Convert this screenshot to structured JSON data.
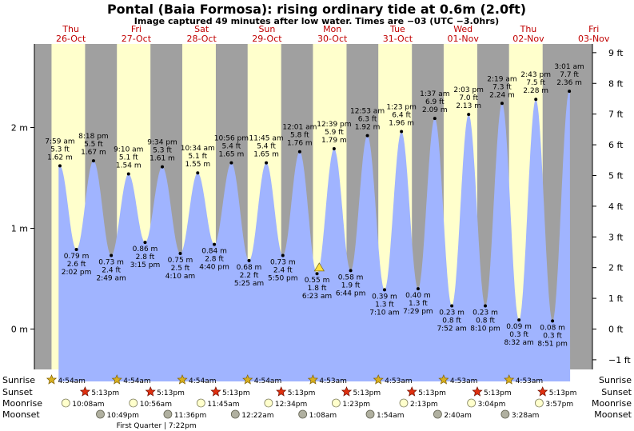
{
  "header": {
    "title": "Pontal (Baia Formosa): rising  ordinary tide at 0.6m (2.0ft)",
    "subtitle": "Image captured 49 minutes after low water. Times are −03 (UTC −3.0hrs)"
  },
  "colors": {
    "night": "#a0a0a0",
    "day": "#ffffcc",
    "water": "#a0b4ff",
    "sun": "#d8b020",
    "sunset_star": "#e03010",
    "moonrise": "#ffffcc",
    "moonset": "#b0b0a0"
  },
  "chart_data": {
    "type": "area",
    "title": "Pontal (Baia Formosa): rising  ordinary tide at 0.6m (2.0ft)",
    "x_unit": "hours since Thu 26-Oct 00:00",
    "ylim_m": [
      -0.4,
      2.65
    ],
    "y_ticks_m": [
      {
        "v": 0,
        "label": "0 m"
      },
      {
        "v": 1,
        "label": "1 m"
      },
      {
        "v": 2,
        "label": "2 m"
      }
    ],
    "y_ticks_ft": [
      {
        "v": -1,
        "label": "−1 ft"
      },
      {
        "v": 0,
        "label": "0 ft"
      },
      {
        "v": 1,
        "label": "1 ft"
      },
      {
        "v": 2,
        "label": "2 ft"
      },
      {
        "v": 3,
        "label": "3 ft"
      },
      {
        "v": 4,
        "label": "4 ft"
      },
      {
        "v": 5,
        "label": "5 ft"
      },
      {
        "v": 6,
        "label": "6 ft"
      },
      {
        "v": 7,
        "label": "7 ft"
      },
      {
        "v": 8,
        "label": "8 ft"
      },
      {
        "v": 9,
        "label": "9 ft"
      }
    ],
    "days": [
      {
        "name": "Thu",
        "date": "26-Oct"
      },
      {
        "name": "Fri",
        "date": "27-Oct"
      },
      {
        "name": "Sat",
        "date": "28-Oct"
      },
      {
        "name": "Sun",
        "date": "29-Oct"
      },
      {
        "name": "Mon",
        "date": "30-Oct"
      },
      {
        "name": "Tue",
        "date": "31-Oct"
      },
      {
        "name": "Wed",
        "date": "01-Nov"
      },
      {
        "name": "Thu",
        "date": "02-Nov"
      },
      {
        "name": "Fri",
        "date": "03-Nov"
      }
    ],
    "tides": [
      {
        "t": 7.98,
        "m": 1.62,
        "type": "high",
        "lines": [
          "7:59 am",
          "5.3 ft",
          "1.62 m"
        ]
      },
      {
        "t": 14.03,
        "m": 0.79,
        "type": "low",
        "lines": [
          "0.79 m",
          "2.6 ft",
          "2:02 pm"
        ]
      },
      {
        "t": 20.3,
        "m": 1.67,
        "type": "high",
        "lines": [
          "8:18 pm",
          "5.5 ft",
          "1.67 m"
        ]
      },
      {
        "t": 26.82,
        "m": 0.73,
        "type": "low",
        "lines": [
          "0.73 m",
          "2.4 ft",
          "2:49 am"
        ]
      },
      {
        "t": 33.17,
        "m": 1.54,
        "type": "high",
        "lines": [
          "9:10 am",
          "5.1 ft",
          "1.54 m"
        ]
      },
      {
        "t": 39.25,
        "m": 0.86,
        "type": "low",
        "lines": [
          "0.86 m",
          "2.8 ft",
          "3:15 pm"
        ]
      },
      {
        "t": 45.57,
        "m": 1.61,
        "type": "high",
        "lines": [
          "9:34 pm",
          "5.3 ft",
          "1.61 m"
        ]
      },
      {
        "t": 52.17,
        "m": 0.75,
        "type": "low",
        "lines": [
          "0.75 m",
          "2.5 ft",
          "4:10 am"
        ]
      },
      {
        "t": 58.57,
        "m": 1.55,
        "type": "high",
        "lines": [
          "10:34 am",
          "5.1 ft",
          "1.55 m"
        ]
      },
      {
        "t": 64.67,
        "m": 0.84,
        "type": "low",
        "lines": [
          "0.84 m",
          "2.8 ft",
          "4:40 pm"
        ]
      },
      {
        "t": 70.93,
        "m": 1.65,
        "type": "high",
        "lines": [
          "10:56 pm",
          "5.4 ft",
          "1.65 m"
        ]
      },
      {
        "t": 77.42,
        "m": 0.68,
        "type": "low",
        "lines": [
          "0.68 m",
          "2.2 ft",
          "5:25 am"
        ]
      },
      {
        "t": 83.75,
        "m": 1.65,
        "type": "high",
        "lines": [
          "11:45 am",
          "5.4 ft",
          "1.65 m"
        ]
      },
      {
        "t": 89.83,
        "m": 0.73,
        "type": "low",
        "lines": [
          "0.73 m",
          "2.4 ft",
          "5:50 pm"
        ]
      },
      {
        "t": 96.02,
        "m": 1.76,
        "type": "high",
        "lines": [
          "12:01 am",
          "5.8 ft",
          "1.76 m"
        ]
      },
      {
        "t": 102.38,
        "m": 0.55,
        "type": "low",
        "lines": [
          "0.55 m",
          "1.8 ft",
          "6:23 am"
        ]
      },
      {
        "t": 108.65,
        "m": 1.79,
        "type": "high",
        "lines": [
          "12:39 pm",
          "5.9 ft",
          "1.79 m"
        ]
      },
      {
        "t": 114.73,
        "m": 0.58,
        "type": "low",
        "lines": [
          "0.58 m",
          "1.9 ft",
          "6:44 pm"
        ]
      },
      {
        "t": 120.88,
        "m": 1.92,
        "type": "high",
        "lines": [
          "12:53 am",
          "6.3 ft",
          "1.92 m"
        ]
      },
      {
        "t": 127.17,
        "m": 0.39,
        "type": "low",
        "lines": [
          "0.39 m",
          "1.3 ft",
          "7:10 am"
        ]
      },
      {
        "t": 133.38,
        "m": 1.96,
        "type": "high",
        "lines": [
          "1:23 pm",
          "6.4 ft",
          "1.96 m"
        ]
      },
      {
        "t": 139.48,
        "m": 0.4,
        "type": "low",
        "lines": [
          "0.40 m",
          "1.3 ft",
          "7:29 pm"
        ]
      },
      {
        "t": 145.62,
        "m": 2.09,
        "type": "high",
        "lines": [
          "1:37 am",
          "6.9 ft",
          "2.09 m"
        ]
      },
      {
        "t": 151.87,
        "m": 0.23,
        "type": "low",
        "lines": [
          "0.23 m",
          "0.8 ft",
          "7:52 am"
        ]
      },
      {
        "t": 158.05,
        "m": 2.13,
        "type": "high",
        "lines": [
          "2:03 pm",
          "7.0 ft",
          "2.13 m"
        ]
      },
      {
        "t": 164.17,
        "m": 0.23,
        "type": "low",
        "lines": [
          "0.23 m",
          "0.8 ft",
          "8:10 pm"
        ]
      },
      {
        "t": 170.32,
        "m": 2.24,
        "type": "high",
        "lines": [
          "2:19 am",
          "7.3 ft",
          "2.24 m"
        ]
      },
      {
        "t": 176.53,
        "m": 0.09,
        "type": "low",
        "lines": [
          "0.09 m",
          "0.3 ft",
          "8:32 am"
        ]
      },
      {
        "t": 182.72,
        "m": 2.28,
        "type": "high",
        "lines": [
          "2:43 pm",
          "7.5 ft",
          "2.28 m"
        ]
      },
      {
        "t": 188.85,
        "m": 0.08,
        "type": "low",
        "lines": [
          "0.08 m",
          "0.3 ft",
          "8:51 pm"
        ]
      },
      {
        "t": 195.02,
        "m": 2.36,
        "type": "high",
        "lines": [
          "3:01 am",
          "7.7 ft",
          "2.36 m"
        ]
      }
    ],
    "current_marker": {
      "t": 103.2,
      "m": 0.6
    },
    "rows": {
      "labels": [
        "Sunrise",
        "Sunset",
        "Moonrise",
        "Moonset"
      ],
      "sunrise": [
        {
          "t": 4.9,
          "label": "4:54am"
        },
        {
          "t": 28.9,
          "label": "4:54am"
        },
        {
          "t": 52.9,
          "label": "4:54am"
        },
        {
          "t": 76.9,
          "label": "4:54am"
        },
        {
          "t": 100.88,
          "label": "4:53am"
        },
        {
          "t": 124.88,
          "label": "4:53am"
        },
        {
          "t": 148.88,
          "label": "4:53am"
        },
        {
          "t": 172.88,
          "label": "4:53am"
        }
      ],
      "sunset": [
        {
          "t": 17.22,
          "label": "5:13pm"
        },
        {
          "t": 41.22,
          "label": "5:13pm"
        },
        {
          "t": 65.22,
          "label": "5:13pm"
        },
        {
          "t": 89.22,
          "label": "5:13pm"
        },
        {
          "t": 113.22,
          "label": "5:13pm"
        },
        {
          "t": 137.22,
          "label": "5:13pm"
        },
        {
          "t": 161.22,
          "label": "5:13pm"
        },
        {
          "t": 185.22,
          "label": "5:13pm"
        }
      ],
      "moonrise": [
        {
          "t": 10.13,
          "label": "10:08am"
        },
        {
          "t": 34.93,
          "label": "10:56am"
        },
        {
          "t": 59.75,
          "label": "11:45am"
        },
        {
          "t": 84.57,
          "label": "12:34pm"
        },
        {
          "t": 109.38,
          "label": "1:23pm"
        },
        {
          "t": 134.22,
          "label": "2:13pm"
        },
        {
          "t": 159.07,
          "label": "3:04pm"
        },
        {
          "t": 183.95,
          "label": "3:57pm"
        }
      ],
      "moonset": [
        {
          "t": 22.82,
          "label": "10:49pm"
        },
        {
          "t": 47.6,
          "label": "11:36pm"
        },
        {
          "t": 72.37,
          "label": "12:22am"
        },
        {
          "t": 97.13,
          "label": "1:08am"
        },
        {
          "t": 121.9,
          "label": "1:54am"
        },
        {
          "t": 146.67,
          "label": "2:40am"
        },
        {
          "t": 171.47,
          "label": "3:28am"
        }
      ],
      "phase_note": "First Quarter | 7:22pm"
    }
  }
}
